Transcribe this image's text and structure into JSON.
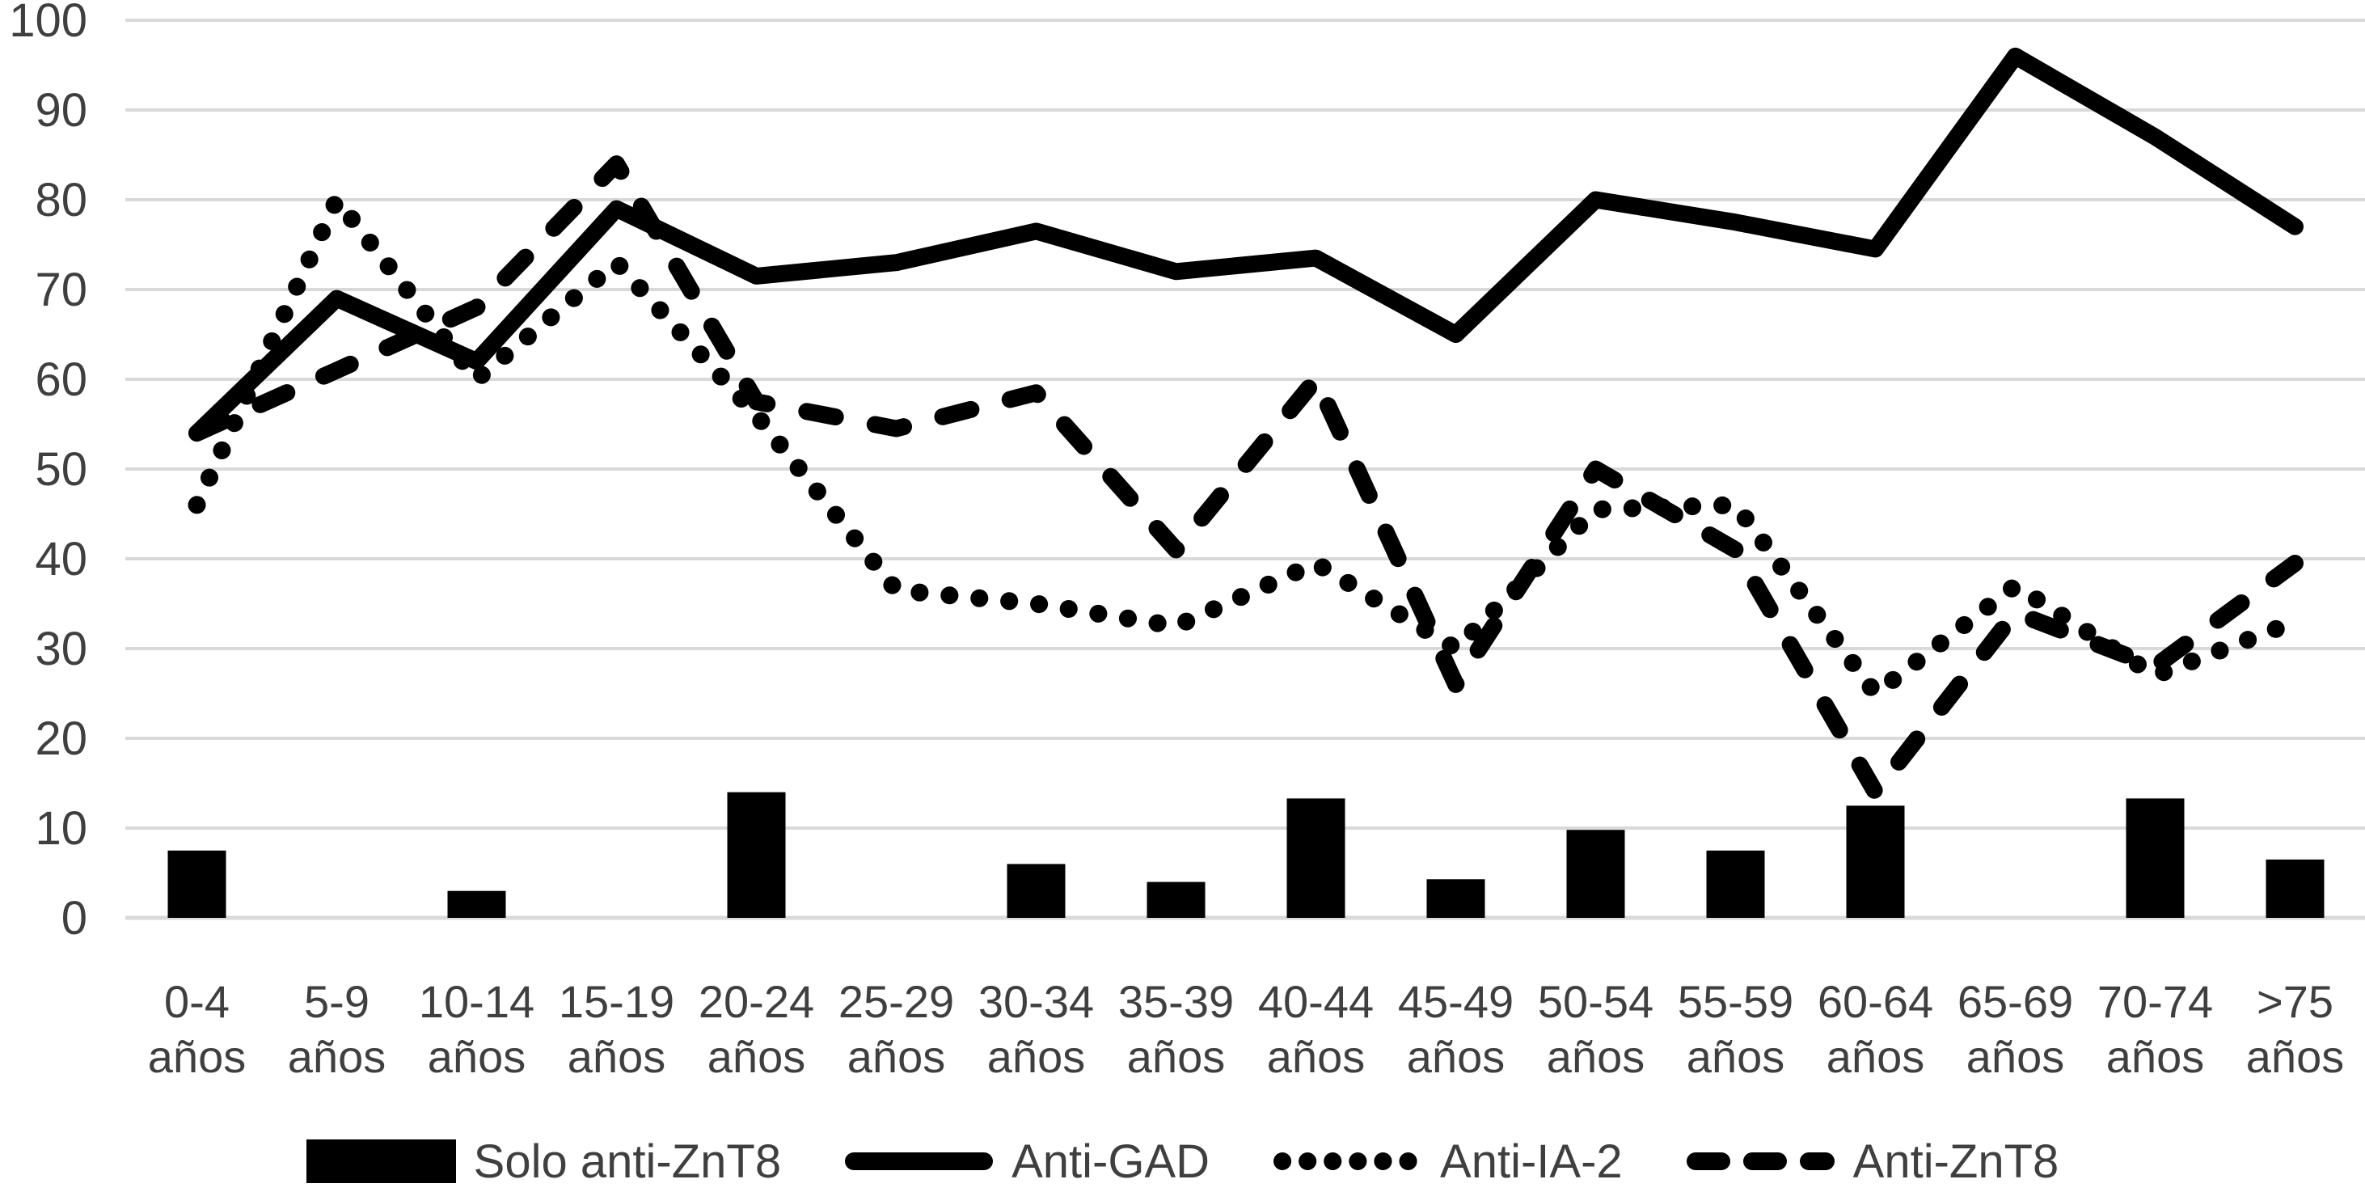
{
  "chart_data": {
    "type": "combo",
    "title": "",
    "xlabel": "",
    "ylabel": "",
    "grid": true,
    "background_color": "#ffffff",
    "gridline_color": "#d9d9d9",
    "series_color": "#000000",
    "tick_label_color": "#3f3f3f",
    "y_axis": {
      "min": 0,
      "max": 100,
      "step": 10,
      "ticks": [
        0,
        10,
        20,
        30,
        40,
        50,
        60,
        70,
        80,
        90,
        100
      ]
    },
    "categories": [
      "0-4",
      "5-9",
      "10-14",
      "15-19",
      "20-24",
      "25-29",
      "30-34",
      "35-39",
      "40-44",
      "45-49",
      "50-54",
      "55-59",
      "60-64",
      "65-69",
      "70-74",
      ">75"
    ],
    "category_sublabel": "años",
    "series": [
      {
        "name": "Solo anti-ZnT8",
        "type": "bar",
        "style": "bar",
        "values": [
          7.5,
          0,
          3,
          0,
          14,
          0,
          6,
          4,
          13.3,
          4.3,
          9.8,
          7.5,
          12.5,
          0,
          13.3,
          6.5
        ]
      },
      {
        "name": "Anti-GAD",
        "type": "line",
        "style": "solid",
        "values": [
          54,
          69,
          62,
          79,
          71.5,
          73,
          76.5,
          72,
          73.5,
          65,
          80,
          77.5,
          74.5,
          96,
          87,
          77
        ]
      },
      {
        "name": "Anti-IA-2",
        "type": "line",
        "style": "dotted",
        "values": [
          46,
          80,
          60,
          73,
          56,
          36.5,
          35,
          32.5,
          39.5,
          30,
          45.5,
          46,
          25,
          37,
          27,
          33
        ]
      },
      {
        "name": "Anti-ZnT8",
        "type": "line",
        "style": "dashed",
        "values": [
          54,
          61,
          68,
          84,
          57.5,
          54.5,
          58.5,
          41,
          60,
          26,
          50,
          41,
          14,
          34,
          28,
          39.5
        ]
      }
    ],
    "legend": {
      "position": "bottom",
      "items": [
        {
          "label": "Solo anti-ZnT8",
          "style": "bar"
        },
        {
          "label": "Anti-GAD",
          "style": "solid"
        },
        {
          "label": "Anti-IA-2",
          "style": "dotted"
        },
        {
          "label": "Anti-ZnT8",
          "style": "dashed"
        }
      ]
    }
  }
}
